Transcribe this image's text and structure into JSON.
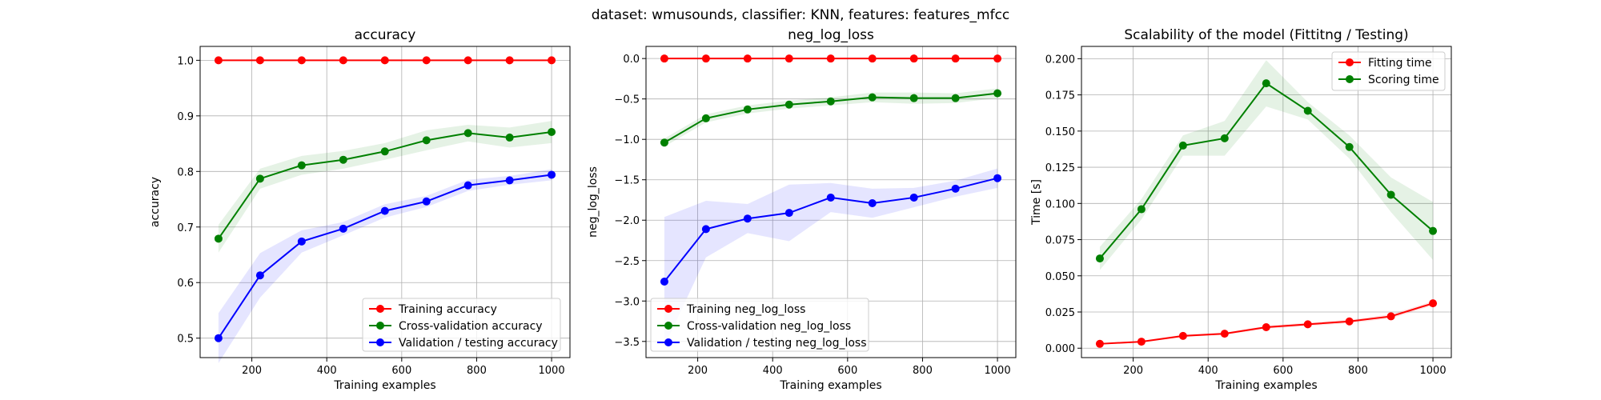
{
  "figure_title": "dataset: wmusounds, classifier: KNN, features: features_mfcc",
  "chart_data": [
    {
      "type": "line",
      "title": "accuracy",
      "xlabel": "Training examples",
      "ylabel": "accuracy",
      "x": [
        111,
        222,
        333,
        444,
        555,
        666,
        777,
        888,
        1000
      ],
      "xlim": [
        62,
        1049
      ],
      "ylim": [
        0.465,
        1.025
      ],
      "xticks": [
        200,
        400,
        600,
        800,
        1000
      ],
      "yticks": [
        0.5,
        0.6,
        0.7,
        0.8,
        0.9,
        1.0
      ],
      "ytick_labels": [
        "0.5",
        "0.6",
        "0.7",
        "0.8",
        "0.9",
        "1.0"
      ],
      "grid": true,
      "legend_position": "lower-right",
      "series": [
        {
          "name": "Training accuracy",
          "color": "#ff0000",
          "values": [
            1.0,
            1.0,
            1.0,
            1.0,
            1.0,
            1.0,
            1.0,
            1.0,
            1.0
          ],
          "band": [
            0,
            0,
            0,
            0,
            0,
            0,
            0,
            0,
            0
          ]
        },
        {
          "name": "Cross-validation accuracy",
          "color": "#008000",
          "values": [
            0.679,
            0.787,
            0.811,
            0.821,
            0.836,
            0.856,
            0.869,
            0.861,
            0.871
          ],
          "band": [
            0.025,
            0.018,
            0.017,
            0.016,
            0.015,
            0.018,
            0.015,
            0.018,
            0.02
          ]
        },
        {
          "name": "Validation / testing accuracy",
          "color": "#0000ff",
          "values": [
            0.5,
            0.613,
            0.674,
            0.697,
            0.729,
            0.746,
            0.775,
            0.784,
            0.794
          ],
          "band": [
            0.045,
            0.04,
            0.02,
            0.012,
            0.012,
            0.01,
            0.01,
            0.008,
            0.01
          ]
        }
      ]
    },
    {
      "type": "line",
      "title": "neg_log_loss",
      "xlabel": "Training examples",
      "ylabel": "neg_log_loss",
      "x": [
        111,
        222,
        333,
        444,
        555,
        666,
        777,
        888,
        1000
      ],
      "xlim": [
        62,
        1049
      ],
      "ylim": [
        -3.7,
        0.15
      ],
      "xticks": [
        200,
        400,
        600,
        800,
        1000
      ],
      "yticks": [
        -3.5,
        -3.0,
        -2.5,
        -2.0,
        -1.5,
        -1.0,
        -0.5,
        0.0
      ],
      "ytick_labels": [
        "−3.5",
        "−3.0",
        "−2.5",
        "−2.0",
        "−1.5",
        "−1.0",
        "−0.5",
        "0.0"
      ],
      "grid": true,
      "legend_position": "lower-left",
      "series": [
        {
          "name": "Training neg_log_loss",
          "color": "#ff0000",
          "values": [
            0.0,
            0.0,
            0.0,
            0.0,
            0.0,
            0.0,
            0.0,
            0.0,
            0.0
          ],
          "band": [
            0,
            0,
            0,
            0,
            0,
            0,
            0,
            0,
            0
          ]
        },
        {
          "name": "Cross-validation neg_log_loss",
          "color": "#008000",
          "values": [
            -1.04,
            -0.74,
            -0.63,
            -0.57,
            -0.53,
            -0.48,
            -0.49,
            -0.49,
            -0.43
          ],
          "band": [
            0.05,
            0.05,
            0.05,
            0.05,
            0.05,
            0.06,
            0.07,
            0.06,
            0.06
          ]
        },
        {
          "name": "Validation / testing neg_log_loss",
          "color": "#0000ff",
          "values": [
            -2.76,
            -2.11,
            -1.98,
            -1.91,
            -1.72,
            -1.79,
            -1.72,
            -1.61,
            -1.48
          ],
          "band": [
            0.8,
            0.35,
            0.18,
            0.35,
            0.18,
            0.18,
            0.12,
            0.1,
            0.12
          ]
        }
      ]
    },
    {
      "type": "line",
      "title": "Scalability of the model (Fittitng / Testing)",
      "xlabel": "Training examples",
      "ylabel": "Time [s]",
      "x": [
        111,
        222,
        333,
        444,
        555,
        666,
        777,
        888,
        1000
      ],
      "xlim": [
        62,
        1049
      ],
      "ylim": [
        -0.0065,
        0.2085
      ],
      "xticks": [
        200,
        400,
        600,
        800,
        1000
      ],
      "yticks": [
        0.0,
        0.025,
        0.05,
        0.075,
        0.1,
        0.125,
        0.15,
        0.175,
        0.2
      ],
      "ytick_labels": [
        "0.000",
        "0.025",
        "0.050",
        "0.075",
        "0.100",
        "0.125",
        "0.150",
        "0.175",
        "0.200"
      ],
      "grid": true,
      "legend_position": "upper-right",
      "series": [
        {
          "name": "Fitting time",
          "color": "#ff0000",
          "values": [
            0.003,
            0.0045,
            0.0085,
            0.01,
            0.0145,
            0.0165,
            0.0185,
            0.022,
            0.031
          ],
          "band": [
            0.0005,
            0.0006,
            0.0008,
            0.0008,
            0.001,
            0.0012,
            0.0012,
            0.0015,
            0.0015
          ]
        },
        {
          "name": "Scoring time",
          "color": "#008000",
          "values": [
            0.062,
            0.096,
            0.14,
            0.145,
            0.183,
            0.164,
            0.139,
            0.106,
            0.081
          ],
          "band": [
            0.008,
            0.007,
            0.007,
            0.012,
            0.016,
            0.006,
            0.008,
            0.012,
            0.02
          ]
        }
      ]
    }
  ]
}
